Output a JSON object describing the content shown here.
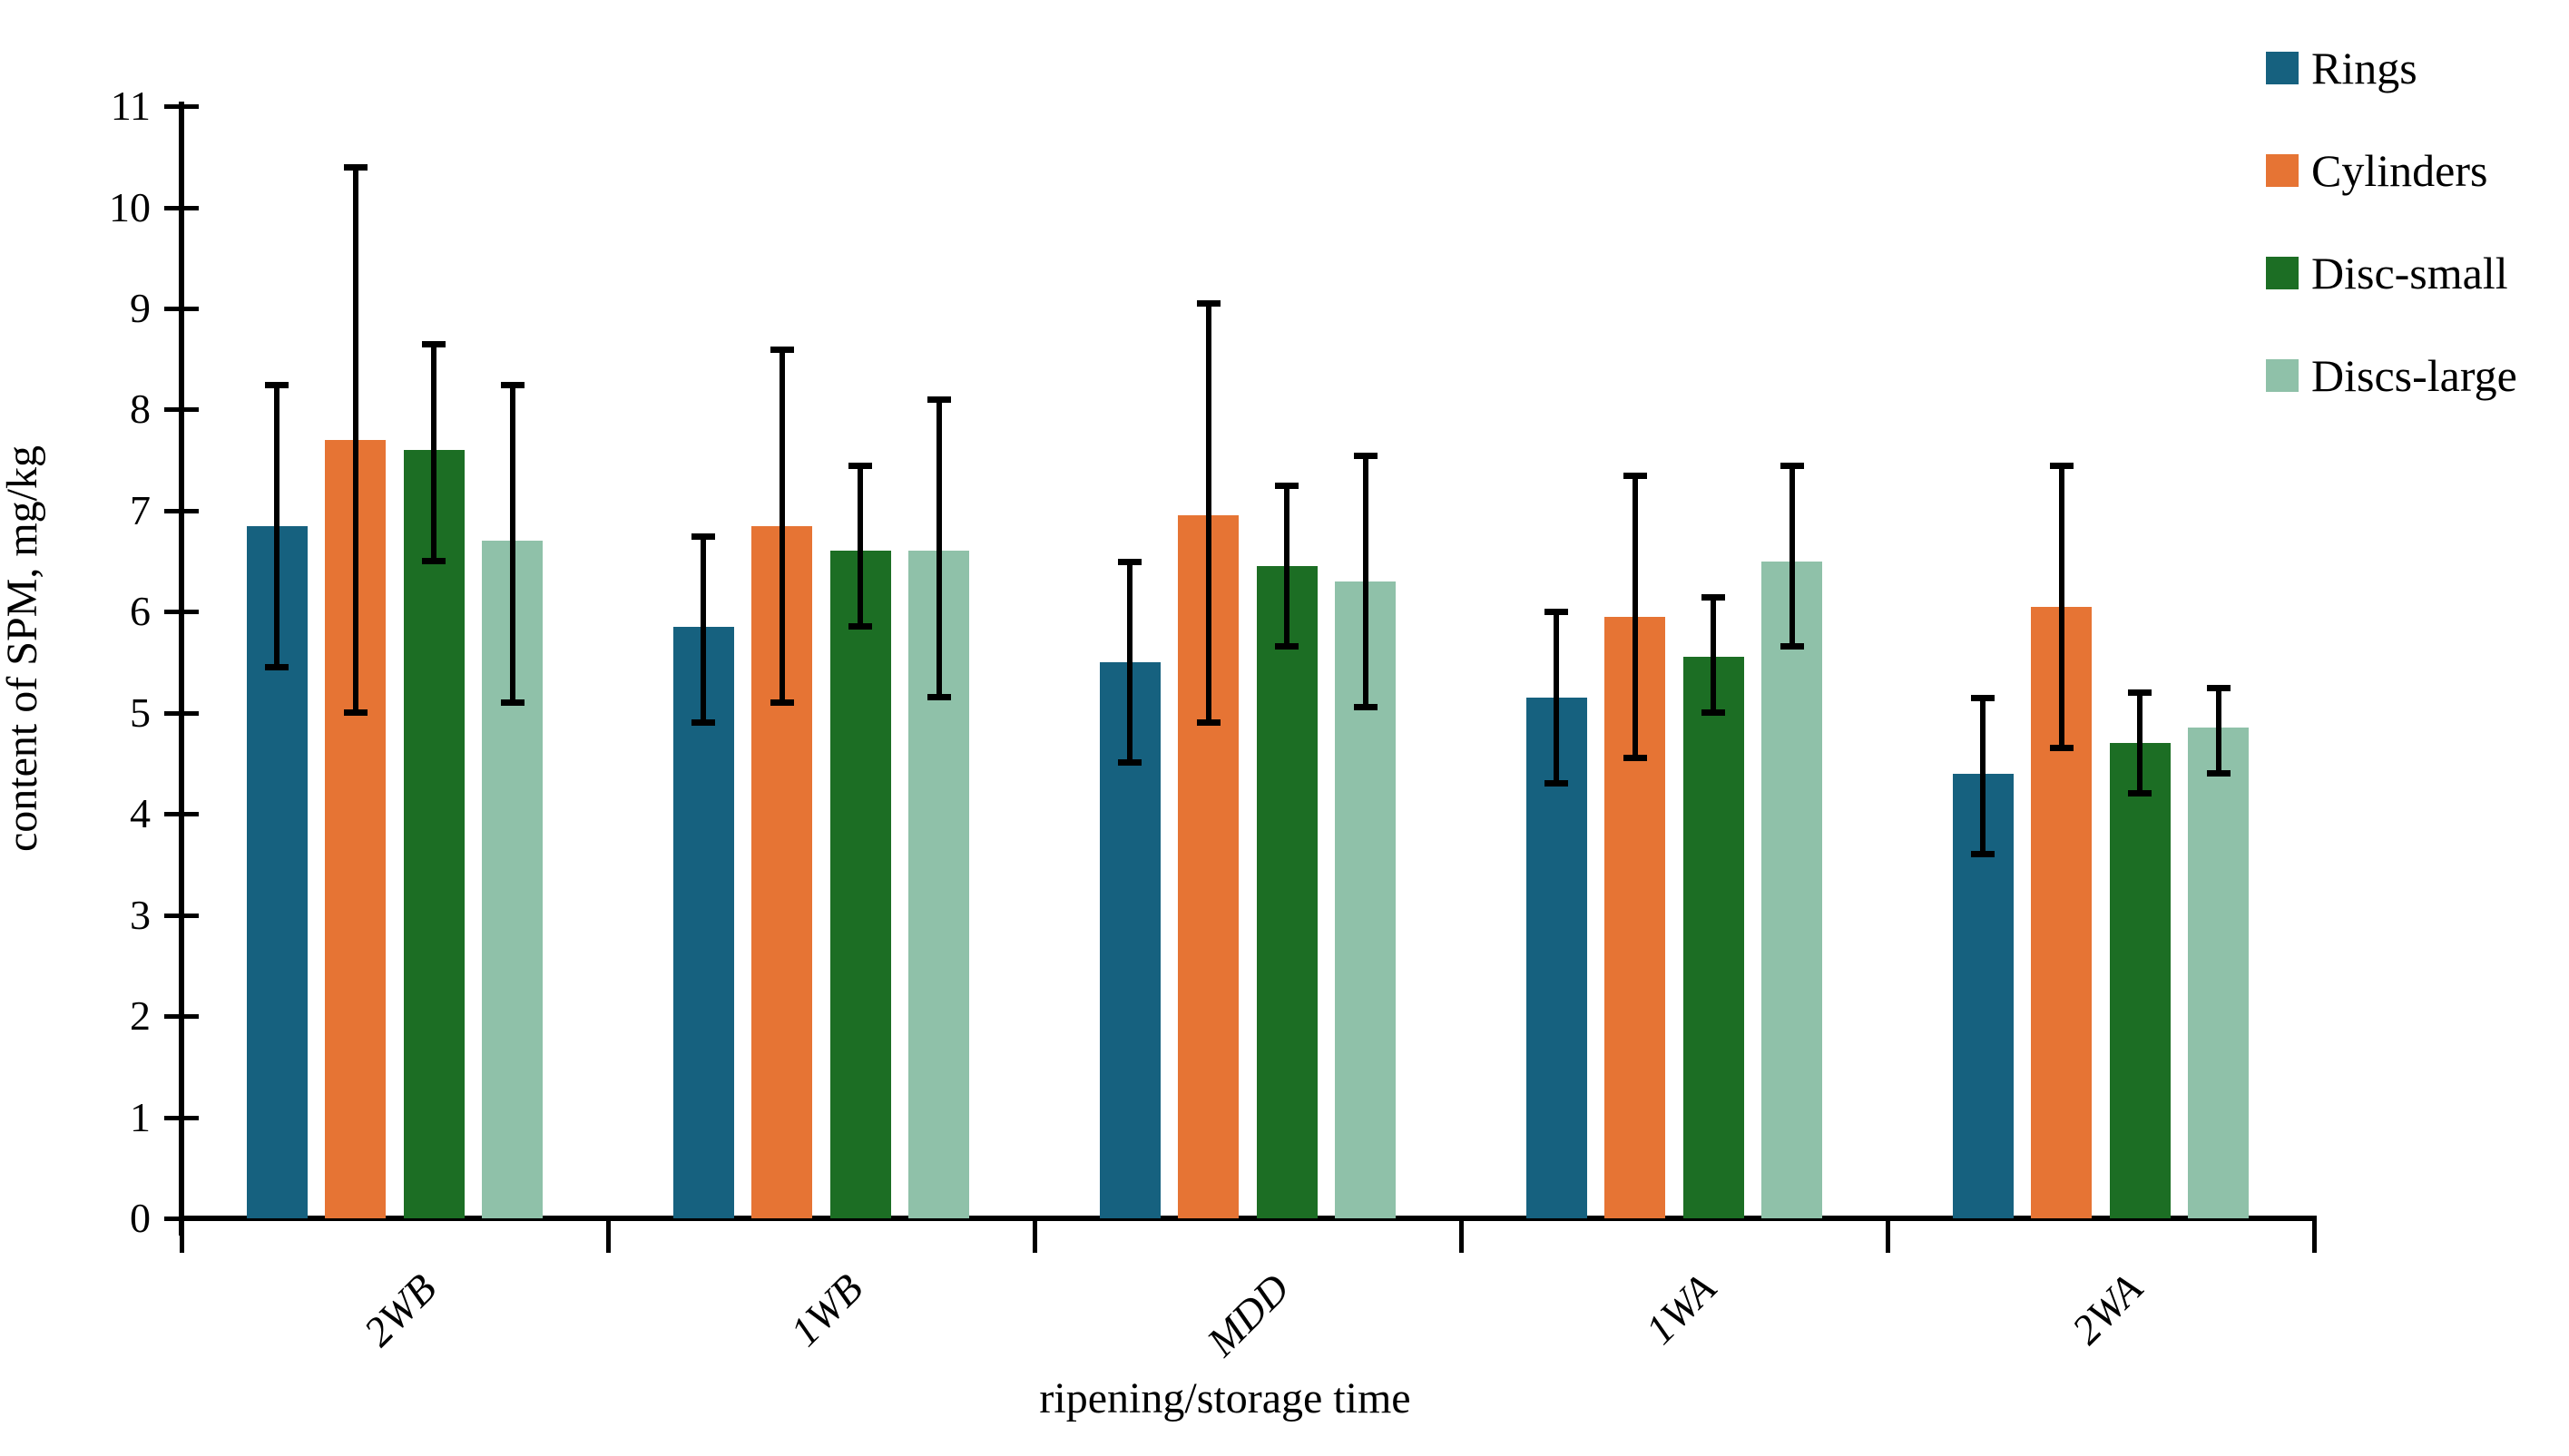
{
  "chart_data": {
    "type": "bar",
    "title": "",
    "xlabel": "ripening/storage time",
    "ylabel": "content of SPM, mg/kg",
    "ylim": [
      0,
      11
    ],
    "ytick_step": 1,
    "grid": false,
    "legend_position": "top-right",
    "error_bars": true,
    "categories": [
      "2WB",
      "1WB",
      "MDD",
      "1WA",
      "2WA"
    ],
    "series": [
      {
        "name": "Rings",
        "color": "#16617F",
        "values": [
          6.85,
          5.85,
          5.5,
          5.15,
          4.4
        ],
        "err_low": [
          5.45,
          4.9,
          4.5,
          4.3,
          3.6
        ],
        "err_high": [
          8.25,
          6.75,
          6.5,
          6.0,
          5.15
        ]
      },
      {
        "name": "Cylinders",
        "color": "#E67434",
        "values": [
          7.7,
          6.85,
          6.95,
          5.95,
          6.05
        ],
        "err_low": [
          5.0,
          5.1,
          4.9,
          4.55,
          4.65
        ],
        "err_high": [
          10.4,
          8.6,
          9.05,
          7.35,
          7.45
        ]
      },
      {
        "name": "Disc-small",
        "color": "#1C6E24",
        "values": [
          7.6,
          6.6,
          6.45,
          5.55,
          4.7
        ],
        "err_low": [
          6.5,
          5.85,
          5.65,
          5.0,
          4.2
        ],
        "err_high": [
          8.65,
          7.45,
          7.25,
          6.15,
          5.2
        ]
      },
      {
        "name": "Discs-large",
        "color": "#8FC1A9",
        "values": [
          6.7,
          6.6,
          6.3,
          6.5,
          4.85
        ],
        "err_low": [
          5.1,
          5.15,
          5.05,
          5.65,
          4.4
        ],
        "err_high": [
          8.25,
          8.1,
          7.55,
          7.45,
          5.25
        ]
      }
    ],
    "axis_color": "#000000",
    "background_color": "#FFFFFF"
  }
}
